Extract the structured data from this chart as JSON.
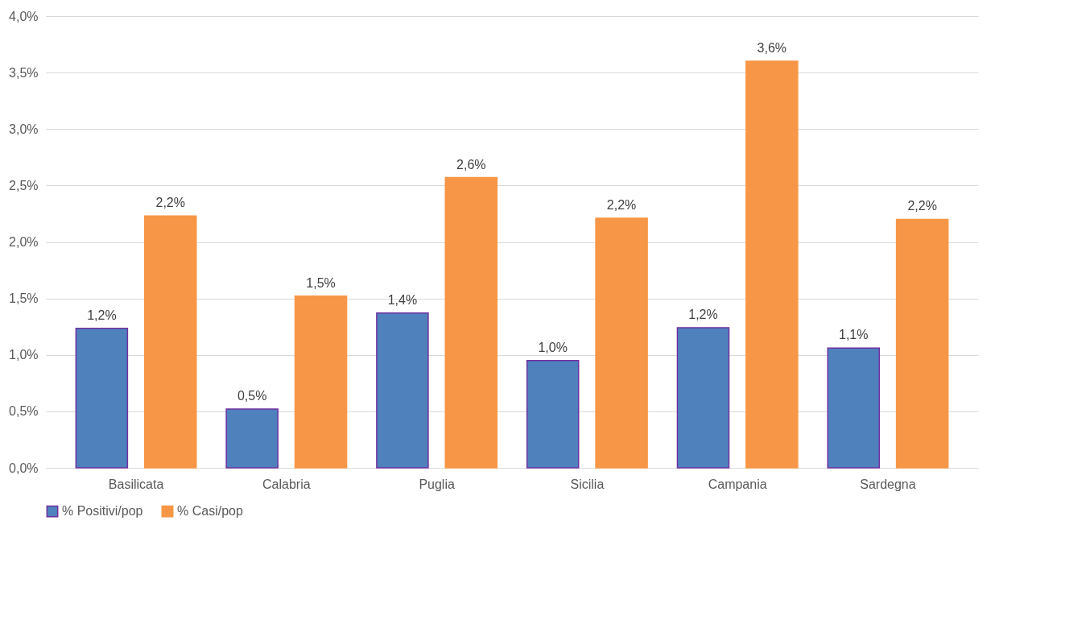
{
  "chart_data": {
    "type": "bar",
    "categories": [
      "Basilicata",
      "Calabria",
      "Puglia",
      "Sicilia",
      "Campania",
      "Sardegna"
    ],
    "series": [
      {
        "name": "% Positivi/pop",
        "color": "#4f81bd",
        "values": [
          1.235,
          0.52,
          1.37,
          0.95,
          1.24,
          1.06
        ],
        "value_labels": [
          "1,2%",
          "0,5%",
          "1,4%",
          "1,0%",
          "1,2%",
          "1,1%"
        ]
      },
      {
        "name": "% Casi/pop",
        "color": "#f79646",
        "values": [
          2.23,
          1.52,
          2.57,
          2.21,
          3.6,
          2.2
        ],
        "value_labels": [
          "2,2%",
          "1,5%",
          "2,6%",
          "2,2%",
          "3,6%",
          "2,2%"
        ]
      }
    ],
    "ylim": [
      0,
      4
    ],
    "yticks": [
      {
        "value": 0,
        "label": "0,0%"
      },
      {
        "value": 0.5,
        "label": "0,5%"
      },
      {
        "value": 1,
        "label": "1,0%"
      },
      {
        "value": 1.5,
        "label": "1,5%"
      },
      {
        "value": 2,
        "label": "2,0%"
      },
      {
        "value": 2.5,
        "label": "2,5%"
      },
      {
        "value": 3,
        "label": "3,0%"
      },
      {
        "value": 3.5,
        "label": "3,5%"
      },
      {
        "value": 4,
        "label": "4,0%"
      }
    ],
    "grid": "y",
    "legend": "bottom"
  }
}
